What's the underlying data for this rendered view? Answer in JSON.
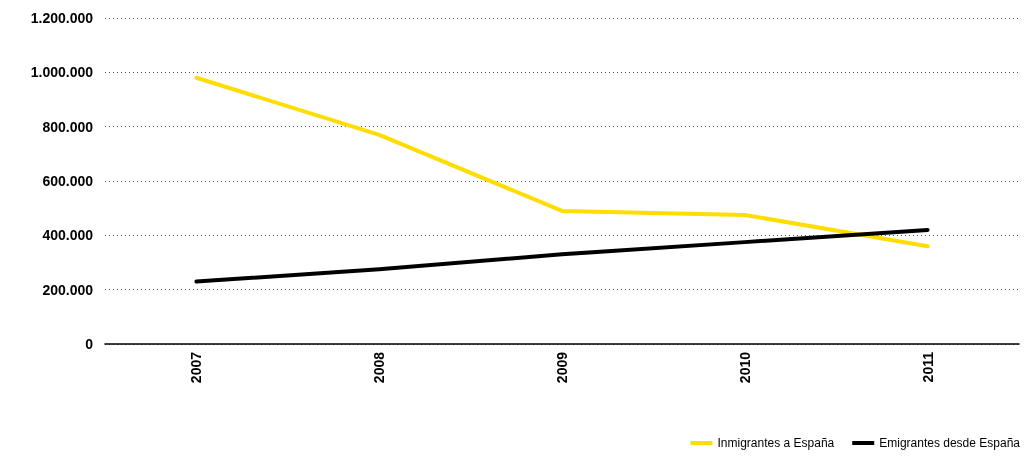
{
  "chart_data": {
    "type": "line",
    "categories": [
      "2007",
      "2008",
      "2009",
      "2010",
      "2011"
    ],
    "series": [
      {
        "name": "Inmigrantes a España",
        "color": "#ffdd00",
        "values": [
          980000,
          770000,
          490000,
          475000,
          360000
        ]
      },
      {
        "name": "Emigrantes desde España",
        "color": "#000000",
        "values": [
          230000,
          275000,
          330000,
          375000,
          420000
        ]
      }
    ],
    "ylim": [
      0,
      1200000
    ],
    "yticks": [
      0,
      {
        "value": 200000,
        "label": "200.000"
      },
      {
        "value": 400000,
        "label": "400.000"
      },
      {
        "value": 600000,
        "label": "600.000"
      },
      {
        "value": 800000,
        "label": "800.000"
      },
      {
        "value": 1000000,
        "label": "1.000.000"
      },
      {
        "value": 1200000,
        "label": "1.200.000"
      }
    ],
    "grid": "y",
    "legend": "bottom right",
    "marker": "none",
    "line_style": "solid"
  }
}
